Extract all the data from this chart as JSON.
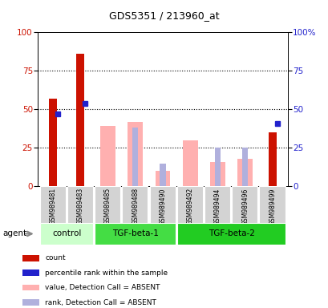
{
  "title": "GDS5351 / 213960_at",
  "samples": [
    "GSM989481",
    "GSM989483",
    "GSM989485",
    "GSM989488",
    "GSM989490",
    "GSM989492",
    "GSM989494",
    "GSM989496",
    "GSM989499"
  ],
  "count_red": [
    57,
    86,
    null,
    null,
    null,
    null,
    null,
    null,
    35
  ],
  "percentile_blue": [
    47,
    54,
    null,
    null,
    null,
    null,
    null,
    null,
    41
  ],
  "value_absent_pink": [
    null,
    null,
    39,
    42,
    10,
    30,
    16,
    18,
    null
  ],
  "rank_absent_purple": [
    null,
    null,
    null,
    38,
    15,
    null,
    25,
    25,
    null
  ],
  "groups": [
    {
      "label": "control",
      "start": 0,
      "end": 2,
      "color": "#ccffcc"
    },
    {
      "label": "TGF-beta-1",
      "start": 3,
      "end": 5,
      "color": "#44ee44"
    },
    {
      "label": "TGF-beta-2",
      "start": 6,
      "end": 8,
      "color": "#22cc22"
    }
  ],
  "color_red": "#cc1100",
  "color_blue": "#2222cc",
  "color_pink": "#ffb0b0",
  "color_purple": "#b0b0dd",
  "yticks": [
    0,
    25,
    50,
    75,
    100
  ]
}
